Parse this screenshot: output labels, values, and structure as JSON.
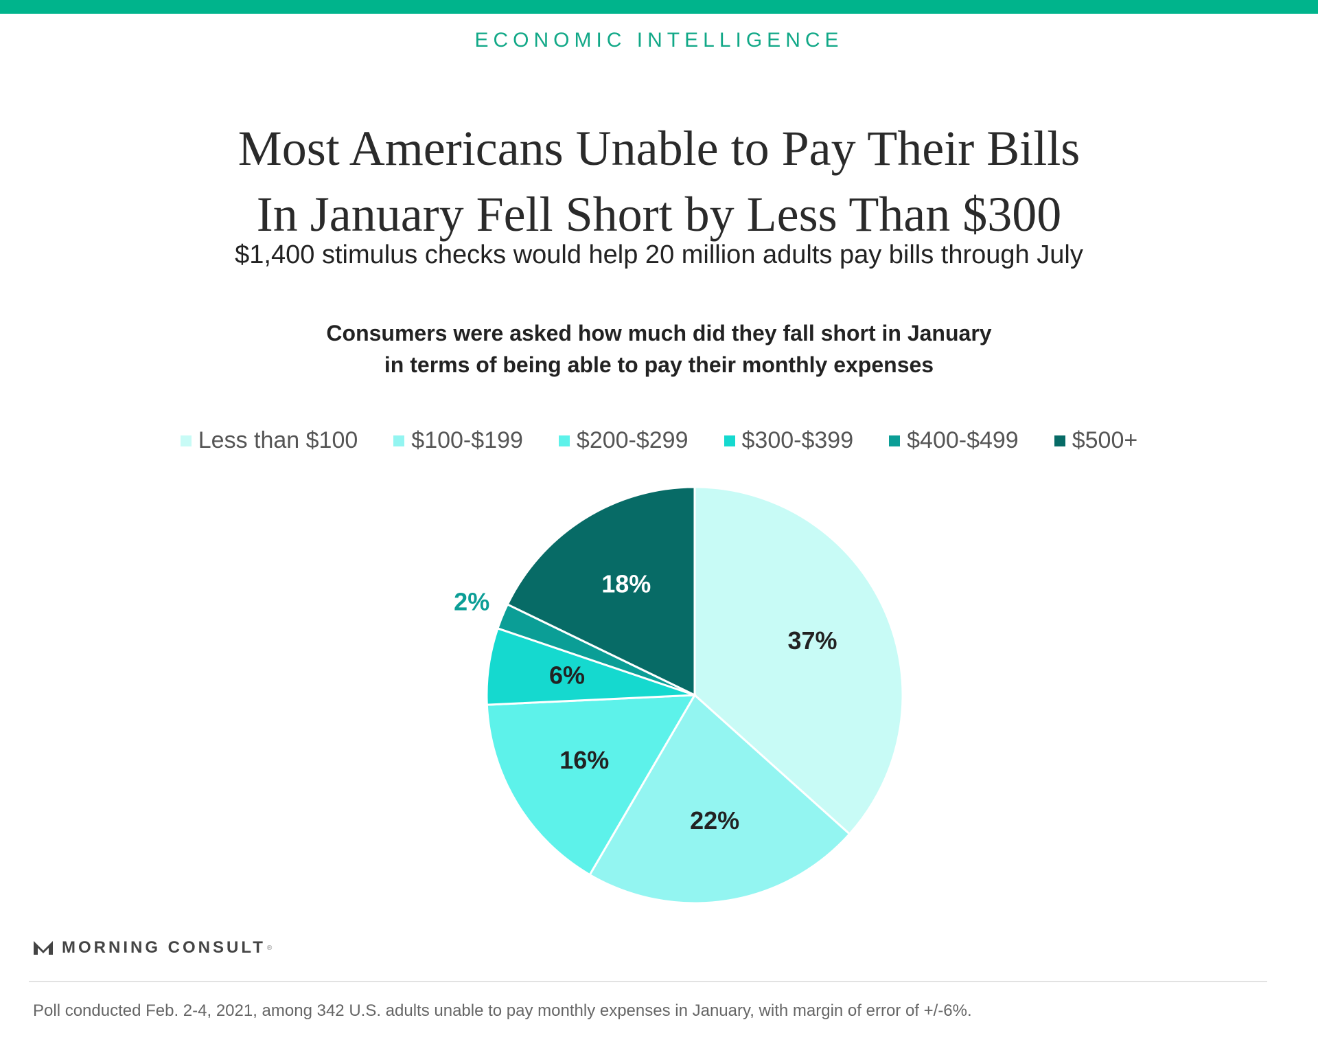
{
  "section_label": "ECONOMIC INTELLIGENCE",
  "title_lines": [
    "Most Americans Unable to Pay Their Bills",
    "In January Fell Short by Less Than $300"
  ],
  "subtitle": "$1,400 stimulus checks would help 20 million adults pay bills through July",
  "chart_heading_lines": [
    "Consumers were asked how much did they fall short in January",
    "in terms of being able to pay their monthly expenses"
  ],
  "brand": {
    "name": "MORNING CONSULT",
    "mark": "®",
    "icon": "morning-consult-logo-icon"
  },
  "footnote": "Poll conducted Feb. 2-4, 2021, among 342 U.S. adults unable to pay monthly expenses in January, with margin of error of +/-6%.",
  "colors": {
    "accent": "#00b48c"
  },
  "chart_data": {
    "type": "pie",
    "title": "",
    "legend_position": "top",
    "start": "12 o'clock, clockwise",
    "slices": [
      {
        "label": "Less than $100",
        "value": 37,
        "display": "37%",
        "color": "#c8fbf6",
        "label_color": "#222222"
      },
      {
        "label": "$100-$199",
        "value": 22,
        "display": "22%",
        "color": "#93f5f1",
        "label_color": "#222222"
      },
      {
        "label": "$200-$299",
        "value": 16,
        "display": "16%",
        "color": "#5df2ea",
        "label_color": "#222222"
      },
      {
        "label": "$300-$399",
        "value": 6,
        "display": "6%",
        "color": "#15d9cf",
        "label_color": "#222222"
      },
      {
        "label": "$400-$499",
        "value": 2,
        "display": "2%",
        "color": "#0b9e96",
        "label_color": "#0b9e96",
        "label_outside": true
      },
      {
        "label": "$500+",
        "value": 18,
        "display": "18%",
        "color": "#076b66",
        "label_color": "#ffffff"
      }
    ]
  }
}
